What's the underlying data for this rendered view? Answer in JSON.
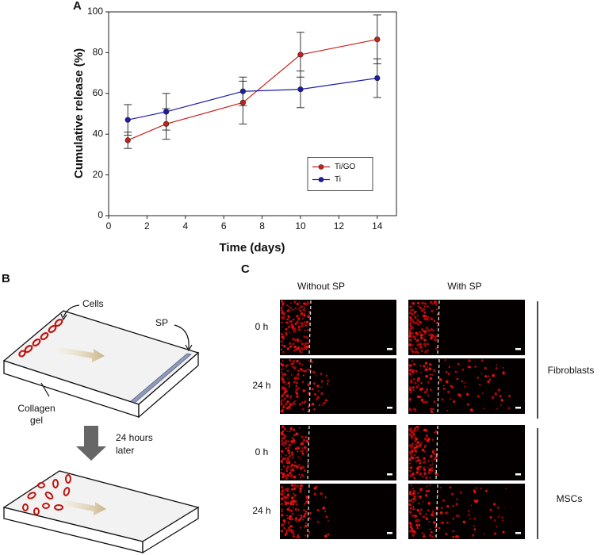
{
  "chart_data": {
    "type": "line",
    "panel_label": "A",
    "xlabel": "Time (days)",
    "ylabel": "Cumulative release (%)",
    "x": [
      1,
      3,
      7,
      10,
      14
    ],
    "xlim": [
      0,
      15
    ],
    "xticks": [
      0,
      2,
      4,
      6,
      8,
      10,
      12,
      14
    ],
    "ylim": [
      0,
      100
    ],
    "yticks": [
      0,
      20,
      40,
      60,
      80,
      100
    ],
    "legend": "center right",
    "series": [
      {
        "name": "Ti/GO",
        "color": "#c8201a",
        "values": [
          37,
          45,
          55.5,
          79,
          86.5
        ],
        "errors": [
          4,
          7.5,
          10.5,
          11,
          12
        ]
      },
      {
        "name": "Ti",
        "color": "#1c1ca6",
        "values": [
          47,
          51,
          61,
          62,
          67.5
        ],
        "errors": [
          7.5,
          9,
          7,
          9,
          9.5
        ]
      }
    ]
  },
  "panel_b": {
    "label": "B",
    "cells": "Cells",
    "sp": "SP",
    "collagen": [
      "Collagen",
      "gel"
    ],
    "time": [
      "24 hours",
      "later"
    ]
  },
  "panel_c": {
    "label": "C",
    "columns": [
      "Without SP",
      "With SP"
    ],
    "rows": [
      "0 h",
      "24 h",
      "0 h",
      "24 h"
    ],
    "groups": [
      "Fibroblasts",
      "MSCs"
    ]
  }
}
